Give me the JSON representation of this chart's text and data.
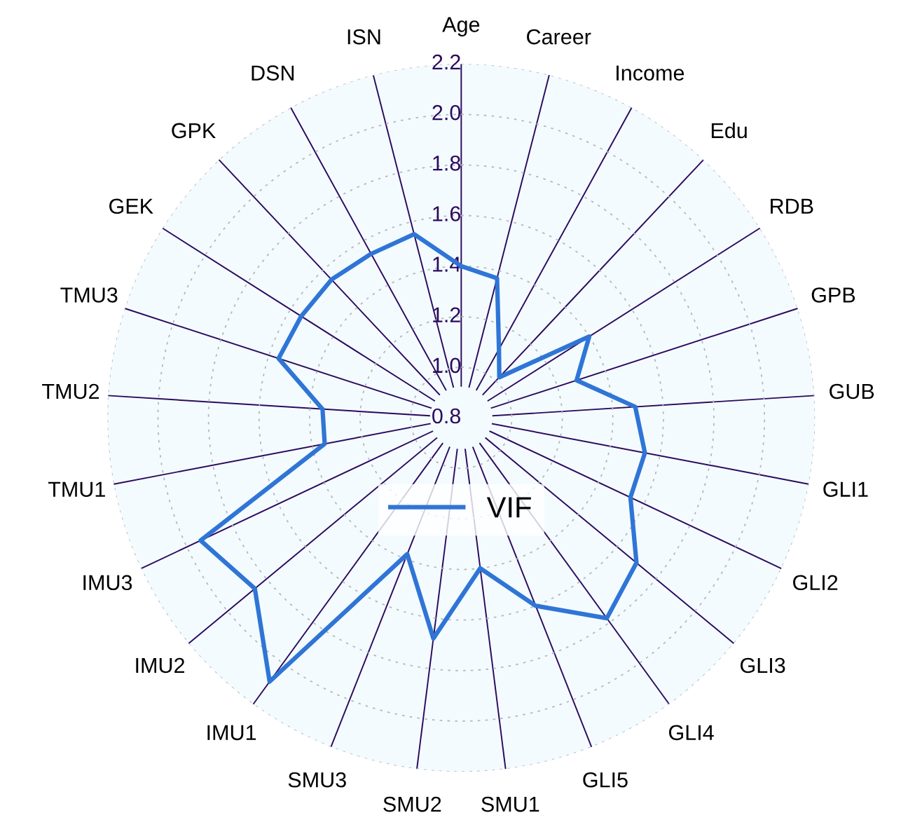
{
  "chart_data": {
    "type": "radar",
    "categories": [
      "Age",
      "Career",
      "Income",
      "Edu",
      "RDB",
      "GPB",
      "GUB",
      "GLI1",
      "GLI2",
      "GLI3",
      "GLI4",
      "GLI5",
      "SMU1",
      "SMU2",
      "SMU3",
      "IMU1",
      "IMU2",
      "IMU3",
      "TMU1",
      "TMU2",
      "TMU3",
      "GEK",
      "GPK",
      "DSN",
      "ISN"
    ],
    "series": [
      {
        "name": "VIF",
        "color": "#2f75d6",
        "values": [
          1.4,
          1.37,
          1.11,
          1.02,
          1.4,
          1.28,
          1.49,
          1.54,
          1.54,
          1.7,
          1.78,
          1.6,
          1.4,
          1.68,
          1.38,
          2.09,
          1.86,
          1.94,
          1.35,
          1.35,
          1.56,
          1.55,
          1.55,
          1.54,
          1.55
        ]
      }
    ],
    "ylim": [
      0.8,
      2.2
    ],
    "yticks": [
      0.8,
      {
        "value": 1,
        "label": "1.0"
      },
      1.2,
      1.4,
      1.6,
      1.8,
      {
        "value": 2,
        "label": "2.0"
      },
      2.2
    ],
    "grid": true,
    "legend": "center",
    "line_style": "solid",
    "marker": "none"
  }
}
